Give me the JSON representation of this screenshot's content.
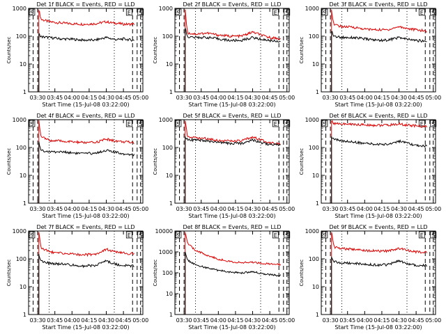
{
  "ylabel": "Counts/sec",
  "xlabel": "Start Time (15-Jul-08 03:22:00)",
  "x_ticks": [
    "03:30",
    "03:45",
    "04:00",
    "04:15",
    "04:30",
    "04:45",
    "05:00"
  ],
  "y_ticks": [
    "1",
    "10",
    "100",
    "1000"
  ],
  "y_ticks_big": [
    "1",
    "10",
    "100",
    "1000",
    "10000"
  ],
  "flags": {
    "saa_in": "S",
    "eclipse": "E",
    "saa_out": "S"
  },
  "colors": {
    "events": "#000000",
    "lld": "#dd0000"
  },
  "chart_data": [
    {
      "type": "line",
      "title": "Det 1f BLACK = Events, RED = LLD",
      "xlabel": "Start Time (15-Jul-08 03:22:00)",
      "ylabel": "Counts/sec",
      "xlim": [
        "03:22",
        "05:02"
      ],
      "ylim": [
        1,
        1000
      ],
      "yscale": "log",
      "series": [
        {
          "name": "LLD",
          "color": "red",
          "x": [
            "03:31",
            "03:33",
            "03:40",
            "03:50",
            "04:00",
            "04:10",
            "04:20",
            "04:30",
            "04:35",
            "04:40",
            "04:45",
            "04:55"
          ],
          "values": [
            900,
            400,
            330,
            300,
            280,
            270,
            280,
            330,
            300,
            290,
            270,
            270
          ]
        },
        {
          "name": "Events",
          "color": "black",
          "x": [
            "03:31",
            "03:33",
            "03:40",
            "03:50",
            "04:00",
            "04:10",
            "04:20",
            "04:30",
            "04:35",
            "04:40",
            "04:45",
            "04:55"
          ],
          "values": [
            120,
            95,
            90,
            80,
            78,
            72,
            72,
            90,
            80,
            75,
            80,
            70
          ]
        }
      ]
    },
    {
      "type": "line",
      "title": "Det 2f BLACK = Events, RED = LLD",
      "xlabel": "Start Time (15-Jul-08 03:22:00)",
      "ylabel": "Counts/sec",
      "xlim": [
        "03:22",
        "05:02"
      ],
      "ylim": [
        1,
        1000
      ],
      "yscale": "log",
      "series": [
        {
          "name": "LLD",
          "color": "red",
          "x": [
            "03:31",
            "03:33",
            "03:40",
            "03:50",
            "04:00",
            "04:10",
            "04:20",
            "04:30",
            "04:35",
            "04:40",
            "04:45",
            "04:55"
          ],
          "values": [
            900,
            130,
            120,
            130,
            110,
            100,
            100,
            140,
            120,
            100,
            90,
            80
          ]
        },
        {
          "name": "Events",
          "color": "black",
          "x": [
            "03:31",
            "03:33",
            "03:40",
            "03:50",
            "04:00",
            "04:10",
            "04:20",
            "04:30",
            "04:35",
            "04:40",
            "04:45",
            "04:55"
          ],
          "values": [
            200,
            95,
            90,
            90,
            80,
            70,
            70,
            90,
            80,
            75,
            70,
            65
          ]
        }
      ]
    },
    {
      "type": "line",
      "title": "Det 3f BLACK = Events, RED = LLD",
      "xlabel": "Start Time (15-Jul-08 03:22:00)",
      "ylabel": "Counts/sec",
      "xlim": [
        "03:22",
        "05:02"
      ],
      "ylim": [
        1,
        1000
      ],
      "yscale": "log",
      "series": [
        {
          "name": "LLD",
          "color": "red",
          "x": [
            "03:31",
            "03:33",
            "03:40",
            "03:50",
            "04:00",
            "04:10",
            "04:20",
            "04:30",
            "04:35",
            "04:40",
            "04:45",
            "04:55"
          ],
          "values": [
            900,
            260,
            220,
            210,
            180,
            170,
            170,
            220,
            200,
            180,
            170,
            150
          ]
        },
        {
          "name": "Events",
          "color": "black",
          "x": [
            "03:31",
            "03:33",
            "03:40",
            "03:50",
            "04:00",
            "04:10",
            "04:20",
            "04:30",
            "04:35",
            "04:40",
            "04:45",
            "04:55"
          ],
          "values": [
            150,
            100,
            90,
            90,
            80,
            72,
            72,
            90,
            80,
            75,
            70,
            65
          ]
        }
      ]
    },
    {
      "type": "line",
      "title": "Det 4f BLACK = Events, RED = LLD",
      "xlabel": "Start Time (15-Jul-08 03:22:00)",
      "ylabel": "Counts/sec",
      "xlim": [
        "03:22",
        "05:02"
      ],
      "ylim": [
        1,
        1000
      ],
      "yscale": "log",
      "series": [
        {
          "name": "LLD",
          "color": "red",
          "x": [
            "03:31",
            "03:33",
            "03:40",
            "03:50",
            "04:00",
            "04:10",
            "04:20",
            "04:30",
            "04:35",
            "04:40",
            "04:45",
            "04:55"
          ],
          "values": [
            900,
            250,
            180,
            170,
            160,
            150,
            150,
            200,
            180,
            170,
            160,
            150
          ]
        },
        {
          "name": "Events",
          "color": "black",
          "x": [
            "03:31",
            "03:33",
            "03:40",
            "03:50",
            "04:00",
            "04:10",
            "04:20",
            "04:30",
            "04:35",
            "04:40",
            "04:45",
            "04:55"
          ],
          "values": [
            150,
            80,
            70,
            70,
            65,
            60,
            62,
            80,
            70,
            65,
            60,
            55
          ]
        }
      ]
    },
    {
      "type": "line",
      "title": "Det 5f BLACK = Events, RED = LLD",
      "xlabel": "Start Time (15-Jul-08 03:22:00)",
      "ylabel": "Counts/sec",
      "xlim": [
        "03:22",
        "05:02"
      ],
      "ylim": [
        1,
        1000
      ],
      "yscale": "log",
      "series": [
        {
          "name": "LLD",
          "color": "red",
          "x": [
            "03:31",
            "03:33",
            "03:40",
            "03:50",
            "04:00",
            "04:10",
            "04:20",
            "04:30",
            "04:35",
            "04:40",
            "04:45",
            "04:55"
          ],
          "values": [
            900,
            260,
            220,
            210,
            180,
            170,
            170,
            240,
            200,
            170,
            150,
            140
          ]
        },
        {
          "name": "Events",
          "color": "black",
          "x": [
            "03:31",
            "03:33",
            "03:40",
            "03:50",
            "04:00",
            "04:10",
            "04:20",
            "04:30",
            "04:35",
            "04:40",
            "04:45",
            "04:55"
          ],
          "values": [
            250,
            200,
            180,
            170,
            150,
            140,
            140,
            190,
            160,
            140,
            130,
            120
          ]
        }
      ]
    },
    {
      "type": "line",
      "title": "Det 6f BLACK = Events, RED = LLD",
      "xlabel": "Start Time (15-Jul-08 03:22:00)",
      "ylabel": "Counts/sec",
      "xlim": [
        "03:22",
        "05:02"
      ],
      "ylim": [
        1,
        1000
      ],
      "yscale": "log",
      "series": [
        {
          "name": "LLD",
          "color": "red",
          "x": [
            "03:31",
            "03:33",
            "03:40",
            "03:50",
            "04:00",
            "04:10",
            "04:20",
            "04:30",
            "04:35",
            "04:40",
            "04:45",
            "04:55"
          ],
          "values": [
            900,
            750,
            700,
            680,
            650,
            630,
            630,
            700,
            650,
            620,
            600,
            560
          ]
        },
        {
          "name": "Events",
          "color": "black",
          "x": [
            "03:31",
            "03:33",
            "03:40",
            "03:50",
            "04:00",
            "04:10",
            "04:20",
            "04:30",
            "04:35",
            "04:40",
            "04:45",
            "04:55"
          ],
          "values": [
            250,
            200,
            170,
            160,
            140,
            130,
            130,
            170,
            150,
            130,
            120,
            110
          ]
        }
      ]
    },
    {
      "type": "line",
      "title": "Det 7f BLACK = Events, RED = LLD",
      "xlabel": "Start Time (15-Jul-08 03:22:00)",
      "ylabel": "Counts/sec",
      "xlim": [
        "03:22",
        "05:02"
      ],
      "ylim": [
        1,
        1000
      ],
      "yscale": "log",
      "series": [
        {
          "name": "LLD",
          "color": "red",
          "x": [
            "03:31",
            "03:33",
            "03:40",
            "03:50",
            "04:00",
            "04:10",
            "04:20",
            "04:30",
            "04:35",
            "04:40",
            "04:45",
            "04:55"
          ],
          "values": [
            900,
            250,
            180,
            160,
            150,
            140,
            145,
            220,
            190,
            170,
            160,
            150
          ]
        },
        {
          "name": "Events",
          "color": "black",
          "x": [
            "03:31",
            "03:33",
            "03:40",
            "03:50",
            "04:00",
            "04:10",
            "04:20",
            "04:30",
            "04:35",
            "04:40",
            "04:45",
            "04:55"
          ],
          "values": [
            150,
            80,
            70,
            65,
            60,
            55,
            58,
            85,
            70,
            62,
            58,
            55
          ]
        }
      ]
    },
    {
      "type": "line",
      "title": "Det 8f BLACK = Events, RED = LLD",
      "xlabel": "Start Time (15-Jul-08 03:22:00)",
      "ylabel": "Counts/sec",
      "xlim": [
        "03:22",
        "05:02"
      ],
      "ylim": [
        1,
        10000
      ],
      "yscale": "log",
      "series": [
        {
          "name": "LLD",
          "color": "red",
          "x": [
            "03:31",
            "03:33",
            "03:40",
            "03:50",
            "04:00",
            "04:10",
            "04:20",
            "04:30",
            "04:35",
            "04:40",
            "04:45",
            "04:55"
          ],
          "values": [
            9000,
            2500,
            1200,
            700,
            450,
            350,
            300,
            320,
            300,
            280,
            260,
            250
          ]
        },
        {
          "name": "Events",
          "color": "black",
          "x": [
            "03:31",
            "03:33",
            "03:40",
            "03:50",
            "04:00",
            "04:10",
            "04:20",
            "04:30",
            "04:35",
            "04:40",
            "04:45",
            "04:55"
          ],
          "values": [
            1000,
            400,
            250,
            170,
            130,
            110,
            100,
            110,
            100,
            90,
            80,
            75
          ]
        }
      ]
    },
    {
      "type": "line",
      "title": "Det 9f BLACK = Events, RED = LLD",
      "xlabel": "Start Time (15-Jul-08 03:22:00)",
      "ylabel": "Counts/sec",
      "xlim": [
        "03:22",
        "05:02"
      ],
      "ylim": [
        1,
        1000
      ],
      "yscale": "log",
      "series": [
        {
          "name": "LLD",
          "color": "red",
          "x": [
            "03:31",
            "03:33",
            "03:40",
            "03:50",
            "04:00",
            "04:10",
            "04:20",
            "04:30",
            "04:35",
            "04:40",
            "04:45",
            "04:55"
          ],
          "values": [
            900,
            270,
            230,
            220,
            200,
            190,
            190,
            240,
            210,
            190,
            180,
            170
          ]
        },
        {
          "name": "Events",
          "color": "black",
          "x": [
            "03:31",
            "03:33",
            "03:40",
            "03:50",
            "04:00",
            "04:10",
            "04:20",
            "04:30",
            "04:35",
            "04:40",
            "04:45",
            "04:55"
          ],
          "values": [
            120,
            80,
            72,
            70,
            65,
            60,
            62,
            85,
            70,
            65,
            60,
            58
          ]
        }
      ]
    }
  ]
}
